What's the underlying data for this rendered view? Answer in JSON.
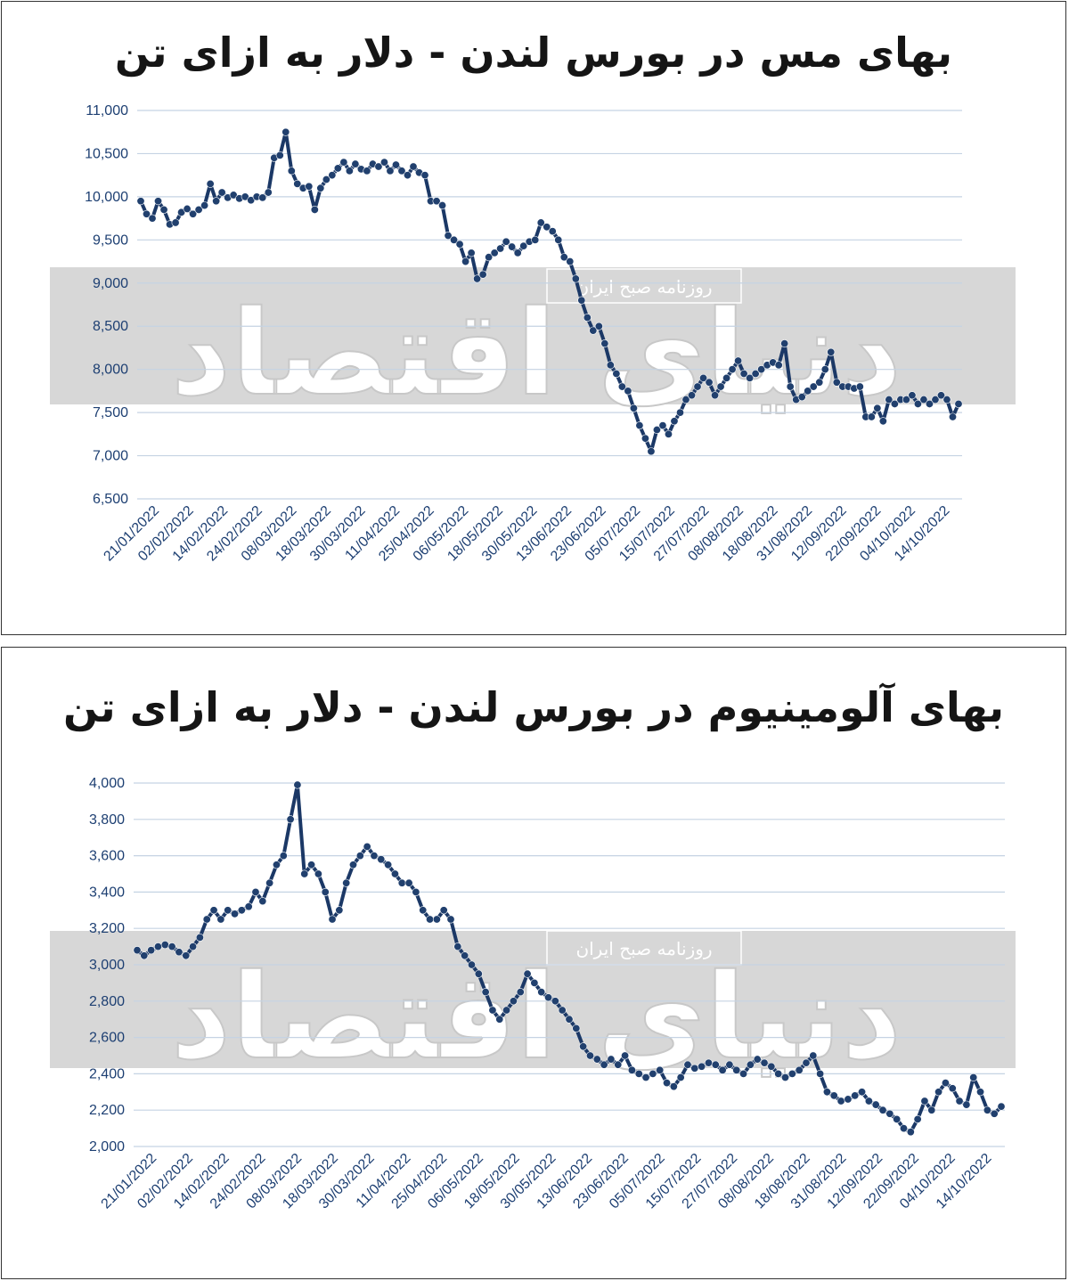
{
  "colors": {
    "line": "#1b3866",
    "marker": "#21406e",
    "grid": "#c5d3e3",
    "band": "#d7d7d7",
    "tick": "#1d3f72"
  },
  "watermark": {
    "brand": "دنیای اقتصاد",
    "tagline": "روزنامه صبح ایران"
  },
  "charts": [
    {
      "id": "copper",
      "title": "بهای مس در بورس لندن - دلار به ازای تن",
      "chart_data": {
        "type": "line",
        "title": "بهای مس در بورس لندن - دلار به ازای تن",
        "xlabel": "",
        "ylabel": "",
        "ylim": [
          6500,
          11000
        ],
        "ytick_values": [
          6500,
          7000,
          7500,
          8000,
          8500,
          9000,
          9500,
          10000,
          10500,
          11000
        ],
        "ytick_labels": [
          "6,500",
          "7,000",
          "7,500",
          "8,000",
          "8,500",
          "9,000",
          "9,500",
          "10,000",
          "10,500",
          "11,000"
        ],
        "x_tick_labels": [
          "21/01/2022",
          "02/02/2022",
          "14/02/2022",
          "24/02/2022",
          "08/03/2022",
          "18/03/2022",
          "30/03/2022",
          "11/04/2022",
          "25/04/2022",
          "06/05/2022",
          "18/05/2022",
          "30/05/2022",
          "13/06/2022",
          "23/06/2022",
          "05/07/2022",
          "15/07/2022",
          "27/07/2022",
          "08/08/2022",
          "18/08/2022",
          "31/08/2022",
          "12/09/2022",
          "22/09/2022",
          "04/10/2022",
          "14/10/2022"
        ],
        "grid": true,
        "series": [
          {
            "values": [
              9950,
              9800,
              9750,
              9950,
              9850,
              9680,
              9700,
              9820,
              9860,
              9800,
              9850,
              9900,
              10150,
              9950,
              10050,
              9990,
              10020,
              9980,
              10000,
              9960,
              10000,
              9990,
              10050,
              10450,
              10480,
              10750,
              10300,
              10150,
              10100,
              10120,
              9850,
              10100,
              10200,
              10250,
              10330,
              10400,
              10300,
              10380,
              10320,
              10300,
              10380,
              10350,
              10400,
              10300,
              10370,
              10300,
              10250,
              10350,
              10280,
              10250,
              9950,
              9950,
              9900,
              9550,
              9500,
              9450,
              9250,
              9350,
              9050,
              9100,
              9300,
              9350,
              9400,
              9480,
              9420,
              9350,
              9430,
              9480,
              9500,
              9700,
              9650,
              9600,
              9500,
              9300,
              9250,
              9050,
              8800,
              8600,
              8450,
              8500,
              8300,
              8050,
              7950,
              7800,
              7750,
              7550,
              7350,
              7200,
              7050,
              7300,
              7350,
              7250,
              7400,
              7500,
              7650,
              7700,
              7800,
              7900,
              7850,
              7700,
              7800,
              7900,
              8000,
              8100,
              7950,
              7900,
              7950,
              8000,
              8050,
              8080,
              8050,
              8300,
              7800,
              7650,
              7680,
              7750,
              7800,
              7850,
              8000,
              8200,
              7850,
              7800,
              7800,
              7780,
              7800,
              7450,
              7450,
              7550,
              7400,
              7650,
              7600,
              7650,
              7650,
              7700,
              7600,
              7650,
              7600,
              7650,
              7700,
              7650,
              7450,
              7600
            ]
          }
        ]
      }
    },
    {
      "id": "aluminium",
      "title": "بهای آلومینیوم در بورس لندن - دلار به ازای تن",
      "chart_data": {
        "type": "line",
        "title": "بهای آلومینیوم در بورس لندن - دلار به ازای تن",
        "xlabel": "",
        "ylabel": "",
        "ylim": [
          2000,
          4000
        ],
        "ytick_values": [
          2000,
          2200,
          2400,
          2600,
          2800,
          3000,
          3200,
          3400,
          3600,
          3800,
          4000
        ],
        "ytick_labels": [
          "2,000",
          "2,200",
          "2,400",
          "2,600",
          "2,800",
          "3,000",
          "3,200",
          "3,400",
          "3,600",
          "3,800",
          "4,000"
        ],
        "x_tick_labels": [
          "21/01/2022",
          "02/02/2022",
          "14/02/2022",
          "24/02/2022",
          "08/03/2022",
          "18/03/2022",
          "30/03/2022",
          "11/04/2022",
          "25/04/2022",
          "06/05/2022",
          "18/05/2022",
          "30/05/2022",
          "13/06/2022",
          "23/06/2022",
          "05/07/2022",
          "15/07/2022",
          "27/07/2022",
          "08/08/2022",
          "18/08/2022",
          "31/08/2022",
          "12/09/2022",
          "22/09/2022",
          "04/10/2022",
          "14/10/2022"
        ],
        "grid": true,
        "series": [
          {
            "values": [
              3080,
              3050,
              3080,
              3100,
              3110,
              3100,
              3070,
              3050,
              3100,
              3150,
              3250,
              3300,
              3250,
              3300,
              3280,
              3300,
              3320,
              3400,
              3350,
              3450,
              3550,
              3600,
              3800,
              3990,
              3500,
              3550,
              3500,
              3400,
              3250,
              3300,
              3450,
              3550,
              3600,
              3650,
              3600,
              3580,
              3550,
              3500,
              3450,
              3450,
              3400,
              3300,
              3250,
              3250,
              3300,
              3250,
              3100,
              3050,
              3000,
              2950,
              2850,
              2750,
              2700,
              2750,
              2800,
              2850,
              2950,
              2900,
              2850,
              2820,
              2800,
              2750,
              2700,
              2650,
              2550,
              2500,
              2480,
              2450,
              2480,
              2450,
              2500,
              2420,
              2400,
              2380,
              2400,
              2420,
              2350,
              2330,
              2380,
              2450,
              2430,
              2440,
              2460,
              2450,
              2420,
              2450,
              2420,
              2400,
              2450,
              2480,
              2460,
              2440,
              2400,
              2380,
              2400,
              2420,
              2460,
              2500,
              2400,
              2300,
              2280,
              2250,
              2260,
              2280,
              2300,
              2250,
              2230,
              2200,
              2180,
              2150,
              2100,
              2080,
              2150,
              2250,
              2200,
              2300,
              2350,
              2320,
              2250,
              2230,
              2380,
              2300,
              2200,
              2180,
              2220
            ]
          }
        ]
      }
    }
  ]
}
